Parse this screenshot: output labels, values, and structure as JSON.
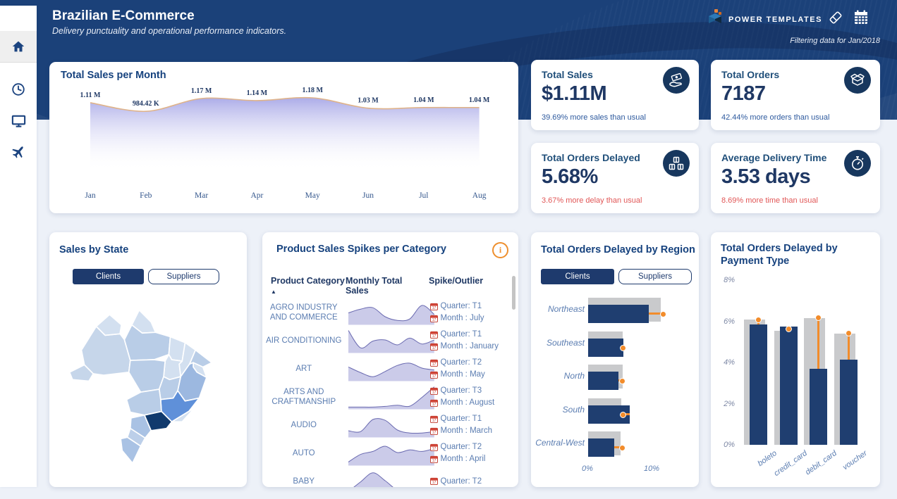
{
  "header": {
    "title": "Brazilian E-Commerce",
    "subtitle": "Delivery punctuality and operational performance indicators.",
    "brand": "POWER TEMPLATES",
    "filter_note": "Filtering data for Jan/2018",
    "accent_navy": "#1b4179"
  },
  "sidebar": {
    "items": [
      {
        "icon": "home-icon",
        "active": true
      },
      {
        "icon": "clock-icon",
        "active": false
      },
      {
        "icon": "monitor-icon",
        "active": false
      },
      {
        "icon": "plane-icon",
        "active": false
      }
    ]
  },
  "kpis": [
    {
      "title": "Total Sales",
      "value": "$1.11M",
      "note": "39.69% more sales than usual",
      "note_color": "#2e5a9e",
      "icon": "hand-money-icon"
    },
    {
      "title": "Total Orders",
      "value": "7187",
      "note": "42.44% more orders than usual",
      "note_color": "#2e5a9e",
      "icon": "open-box-icon"
    },
    {
      "title": "Total Orders Delayed",
      "value": "5.68%",
      "note": "3.67% more delay than usual",
      "note_color": "#e15757",
      "icon": "boxes-icon"
    },
    {
      "title": "Average Delivery Time",
      "value": "3.53 days",
      "note": "8.69% more time than usual",
      "note_color": "#e15757",
      "icon": "stopwatch-icon"
    }
  ],
  "sales_by_state": {
    "title": "Sales by State",
    "toggle": {
      "active": "Clients",
      "inactive": "Suppliers"
    },
    "map_colors": {
      "default": "#c6d6ea",
      "light": "#d3e0f0",
      "shade2": "#b9cde7",
      "bahia": "#9cb8e0",
      "minas": "#5f90d9",
      "sao_paulo": "#113a6d",
      "south": "#a9c2e4",
      "south2": "#bccfe9"
    }
  },
  "region_card": {
    "title": "Total Orders Delayed by Region",
    "toggle": {
      "active": "Clients",
      "inactive": "Suppliers"
    }
  },
  "payment_card": {
    "title": "Total Orders Delayed by Payment Type"
  },
  "spikes_table": {
    "title": "Product Sales Spikes per Category",
    "columns": [
      "Product Category",
      "Monthly Total Sales",
      "Spike/Outlier"
    ],
    "sort_icon": "▲",
    "info_icon": "i"
  },
  "chart_data": [
    {
      "id": "monthly_sales",
      "type": "area",
      "title": "Total Sales per Month",
      "categories": [
        "Jan",
        "Feb",
        "Mar",
        "Apr",
        "May",
        "Jun",
        "Jul",
        "Aug"
      ],
      "values": [
        1110000,
        984420,
        1170000,
        1140000,
        1180000,
        1030000,
        1040000,
        1040000
      ],
      "labels": [
        "1.11 M",
        "984.42 K",
        "1.17 M",
        "1.14 M",
        "1.18 M",
        "1.03 M",
        "1.04 M",
        "1.04 M"
      ],
      "ylim": [
        0,
        1180000
      ],
      "line_color": "#dfb38a",
      "fill_color": "#9d9de4"
    },
    {
      "id": "category_spikes",
      "type": "table",
      "title": "Product Sales Spikes per Category",
      "rows": [
        {
          "category": "AGRO INDUSTRY AND COMMERCE",
          "sparkline": [
            0.45,
            0.62,
            0.68,
            0.28,
            0.12,
            0.18,
            0.78,
            0.38
          ],
          "quarter": "Quarter: T1",
          "month": "Month : July"
        },
        {
          "category": "AIR CONDITIONING",
          "sparkline": [
            0.92,
            0.15,
            0.45,
            0.5,
            0.28,
            0.58,
            0.32,
            0.5
          ],
          "quarter": "Quarter: T1",
          "month": "Month : January"
        },
        {
          "category": "ART",
          "sparkline": [
            0.55,
            0.3,
            0.12,
            0.35,
            0.62,
            0.72,
            0.5,
            0.42
          ],
          "quarter": "Quarter: T2",
          "month": "Month : May"
        },
        {
          "category": "ARTS AND CRAFTMANSHIP",
          "sparkline": [
            0.02,
            0.02,
            0.02,
            0.05,
            0.1,
            0.06,
            0.45,
            0.92
          ],
          "quarter": "Quarter: T3",
          "month": "Month : August"
        },
        {
          "category": "AUDIO",
          "sparkline": [
            0.22,
            0.18,
            0.72,
            0.68,
            0.25,
            0.12,
            0.12,
            0.18
          ],
          "quarter": "Quarter: T1",
          "month": "Month : March"
        },
        {
          "category": "AUTO",
          "sparkline": [
            0.08,
            0.42,
            0.55,
            0.78,
            0.5,
            0.62,
            0.55,
            0.68
          ],
          "quarter": "Quarter: T2",
          "month": "Month : April"
        },
        {
          "category": "BABY",
          "sparkline": [
            0.02,
            0.45,
            0.85,
            0.5,
            0.08,
            0.04,
            0.04,
            0.06
          ],
          "quarter": "Quarter: T2",
          "month": ""
        }
      ]
    },
    {
      "id": "delay_by_region",
      "type": "bar",
      "orientation": "horizontal",
      "title": "Total Orders Delayed by Region",
      "categories": [
        "Northeast",
        "Southeast",
        "North",
        "South",
        "Central-West"
      ],
      "series": [
        {
          "name": "delayed_pct",
          "values": [
            9.1,
            5.3,
            4.6,
            6.3,
            3.9
          ],
          "color": "#1f3e70"
        },
        {
          "name": "expected_pct",
          "values": [
            11.0,
            5.2,
            5.2,
            5.0,
            4.9
          ],
          "color": "#c9cacc"
        },
        {
          "name": "marker_pct",
          "values": [
            11.2,
            5.2,
            5.0,
            5.2,
            5.0
          ],
          "color": "#f28c2b"
        }
      ],
      "xticks": [
        "0%",
        "10%"
      ],
      "xlim": [
        0,
        12
      ]
    },
    {
      "id": "delay_by_payment",
      "type": "bar",
      "orientation": "vertical",
      "title": "Total Orders Delayed by Payment Type",
      "categories": [
        "boleto",
        "credit_card",
        "debit_card",
        "voucher"
      ],
      "series": [
        {
          "name": "delayed_pct",
          "values": [
            5.85,
            5.75,
            3.7,
            4.15
          ],
          "color": "#1f3e70"
        },
        {
          "name": "expected_pct",
          "values": [
            6.1,
            5.55,
            6.15,
            5.4
          ],
          "color": "#c9cacc"
        },
        {
          "name": "marker_pct",
          "values": [
            6.05,
            5.6,
            6.15,
            5.4
          ],
          "color": "#f28c2b"
        }
      ],
      "yticks": [
        "0%",
        "2%",
        "4%",
        "6%",
        "8%"
      ],
      "ylim": [
        0,
        8
      ]
    }
  ]
}
